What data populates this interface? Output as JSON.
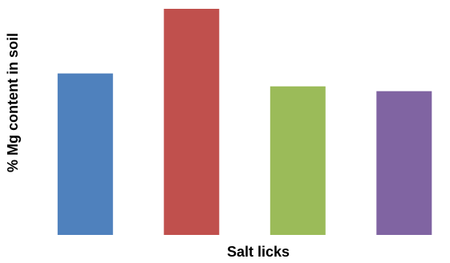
{
  "chart_data": {
    "type": "bar",
    "categories": [
      "",
      "",
      "",
      ""
    ],
    "values": [
      50,
      70,
      46,
      44.5
    ],
    "colors": [
      "#4F81BD",
      "#C0504D",
      "#9BBB59",
      "#8064A2"
    ],
    "xlabel": "Salt licks",
    "ylabel": "% Mg content in soil",
    "ylim": [
      0,
      70
    ],
    "grid": false,
    "legend": "none",
    "tick_labels_visible": false
  }
}
